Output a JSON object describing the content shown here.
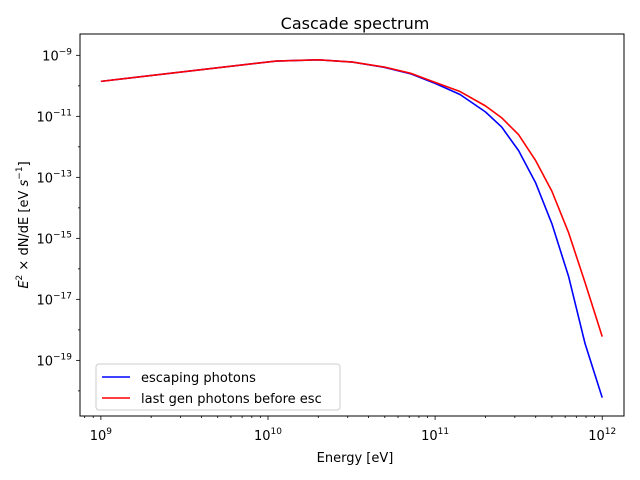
{
  "chart_data": {
    "type": "line",
    "title": "Cascade spectrum",
    "xlabel": "Energy [eV]",
    "ylabel": "E² × dN/dE [eV s⁻¹]",
    "xscale": "log",
    "yscale": "log",
    "xlim": [
      750000000.0,
      1350000000000.0
    ],
    "ylim": [
      1.5e-21,
      5e-09
    ],
    "xticks": [
      {
        "value": 1000000000.0,
        "base": "10",
        "exp": "9"
      },
      {
        "value": 10000000000.0,
        "base": "10",
        "exp": "10"
      },
      {
        "value": 100000000000.0,
        "base": "10",
        "exp": "11"
      },
      {
        "value": 1000000000000.0,
        "base": "10",
        "exp": "12"
      }
    ],
    "yticks": [
      {
        "value": 1e-19,
        "base": "10",
        "exp": "−19"
      },
      {
        "value": 1e-17,
        "base": "10",
        "exp": "−17"
      },
      {
        "value": 1e-15,
        "base": "10",
        "exp": "−15"
      },
      {
        "value": 1e-13,
        "base": "10",
        "exp": "−13"
      },
      {
        "value": 1e-11,
        "base": "10",
        "exp": "−11"
      },
      {
        "value": 1e-09,
        "base": "10",
        "exp": "−9"
      }
    ],
    "grid": false,
    "legend_position": "lower-left",
    "series": [
      {
        "name": "escaping photons",
        "color": "#0000ff",
        "x": [
          1000000000.0,
          11200000000.0,
          20000000000.0,
          32000000000.0,
          50000000000.0,
          71000000000.0,
          100000000000.0,
          141000000000.0,
          200000000000.0,
          250000000000.0,
          316000000000.0,
          400000000000.0,
          500000000000.0,
          630000000000.0,
          790000000000.0,
          1000000000000.0
        ],
        "y": [
          1.4e-10,
          6.5e-10,
          7.1e-10,
          6e-10,
          4e-10,
          2.5e-10,
          1.2e-10,
          5.2e-11,
          1.4e-11,
          4.5e-12,
          7.5e-13,
          6.5e-14,
          3e-15,
          5.5e-17,
          3.5e-19,
          6e-21
        ]
      },
      {
        "name": "last gen photons before esc",
        "color": "#ff0000",
        "x": [
          1000000000.0,
          11200000000.0,
          20000000000.0,
          32000000000.0,
          50000000000.0,
          71000000000.0,
          100000000000.0,
          141000000000.0,
          200000000000.0,
          250000000000.0,
          316000000000.0,
          400000000000.0,
          500000000000.0,
          630000000000.0,
          790000000000.0,
          1000000000000.0
        ],
        "y": [
          1.4e-10,
          6.5e-10,
          7.1e-10,
          6e-10,
          4.1e-10,
          2.6e-10,
          1.3e-10,
          6.5e-11,
          2.2e-11,
          9e-12,
          2.5e-12,
          3.5e-13,
          3.5e-14,
          1.5e-15,
          3.5e-17,
          6e-19
        ]
      }
    ]
  }
}
